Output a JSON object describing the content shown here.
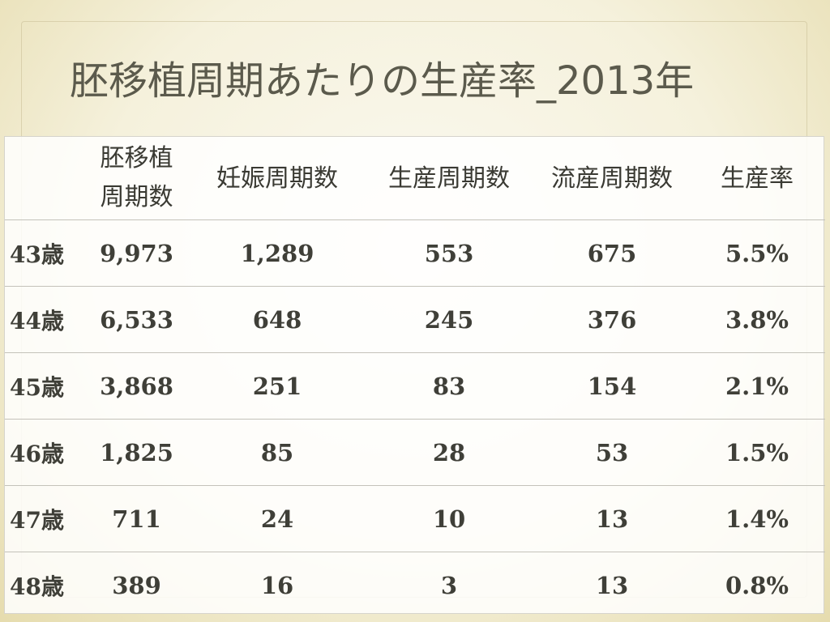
{
  "slide": {
    "title": "胚移植周期あたりの生産率_2013年"
  },
  "table": {
    "headers": {
      "row_label": "",
      "transfer_cycles": "胚移植周期数",
      "pregnancy_cycles": "妊娠周期数",
      "live_birth_cycles": "生産周期数",
      "miscarriage_cycles": "流産周期数",
      "live_birth_rate": "生産率"
    },
    "rows": [
      {
        "age": "43歳",
        "transfer_cycles": "9,973",
        "pregnancy_cycles": "1,289",
        "live_birth_cycles": "553",
        "miscarriage_cycles": "675",
        "live_birth_rate": "5.5%"
      },
      {
        "age": "44歳",
        "transfer_cycles": "6,533",
        "pregnancy_cycles": "648",
        "live_birth_cycles": "245",
        "miscarriage_cycles": "376",
        "live_birth_rate": "3.8%"
      },
      {
        "age": "45歳",
        "transfer_cycles": "3,868",
        "pregnancy_cycles": "251",
        "live_birth_cycles": "83",
        "miscarriage_cycles": "154",
        "live_birth_rate": "2.1%"
      },
      {
        "age": "46歳",
        "transfer_cycles": "1,825",
        "pregnancy_cycles": "85",
        "live_birth_cycles": "28",
        "miscarriage_cycles": "53",
        "live_birth_rate": "1.5%"
      },
      {
        "age": "47歳",
        "transfer_cycles": "711",
        "pregnancy_cycles": "24",
        "live_birth_cycles": "10",
        "miscarriage_cycles": "13",
        "live_birth_rate": "1.4%"
      },
      {
        "age": "48歳",
        "transfer_cycles": "389",
        "pregnancy_cycles": "16",
        "live_birth_cycles": "3",
        "miscarriage_cycles": "13",
        "live_birth_rate": "0.8%"
      }
    ]
  }
}
